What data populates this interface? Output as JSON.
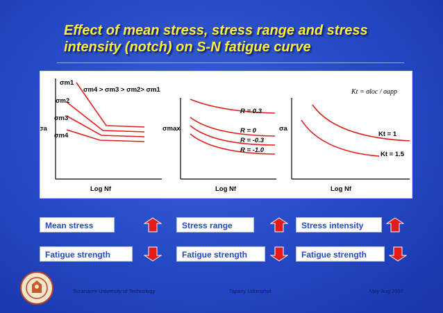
{
  "slide": {
    "title": "Effect of mean stress, stress range and stress intensity (notch) on S-N fatigue curve"
  },
  "panels": {
    "mean_stress": {
      "ylabel": "σa",
      "xlabel": "Log Nf",
      "curve_labels": [
        "σm1",
        "σm2",
        "σm3",
        "σm4"
      ],
      "relation": "σm4 > σm3 > σm2> σm1"
    },
    "stress_range": {
      "ylabel": "σmax",
      "xlabel": "Log Nf",
      "curve_labels": [
        "R = 0.3",
        "R = 0",
        "R = -0.3",
        "R = -1.0"
      ]
    },
    "stress_intensity": {
      "ylabel": "σa",
      "xlabel": "Log Nf",
      "formula": "Kt = σloc / σapp",
      "curve_labels": [
        "Kt = 1",
        "Kt = 1.5"
      ]
    }
  },
  "effects": [
    {
      "factor": "Mean stress",
      "factor_dir": "up",
      "result": "Fatigue strength",
      "result_dir": "down"
    },
    {
      "factor": "Stress range",
      "factor_dir": "up",
      "result": "Fatigue strength",
      "result_dir": "down"
    },
    {
      "factor": "Stress intensity",
      "factor_dir": "up",
      "result": "Fatigue strength",
      "result_dir": "down"
    }
  ],
  "footer": {
    "left": "Suranaree University of Technology",
    "center": "Tapany Udomphol",
    "right": "May-Aug  2007"
  },
  "colors": {
    "background": "#2448c4",
    "title": "#ffef3a",
    "curve": "#e21b1b",
    "box_text": "#2448c4",
    "arrow": "#e21b1b"
  }
}
